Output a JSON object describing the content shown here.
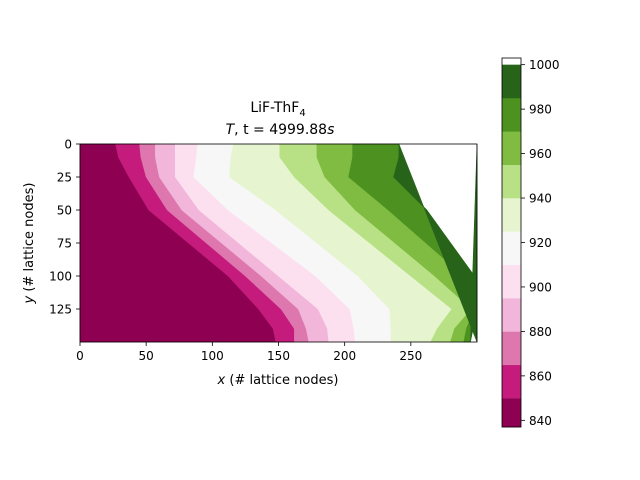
{
  "chart_data": {
    "type": "heatmap",
    "subtype": "filled-contour",
    "title_line1": "LiF-ThF",
    "title_line1_sub": "4",
    "title_line2_var": "T",
    "title_line2_rest": ", t = 4999.88",
    "title_line2_unit": "s",
    "xlabel_var": "x",
    "xlabel_rest": " (# lattice nodes)",
    "ylabel_var": "y",
    "ylabel_rest": " (# lattice nodes)",
    "xlim": [
      0,
      300
    ],
    "ylim": [
      150,
      0
    ],
    "xticks": [
      0,
      50,
      100,
      150,
      200,
      250
    ],
    "yticks": [
      0,
      25,
      50,
      75,
      100,
      125
    ],
    "colorbar": {
      "levels": [
        835,
        850,
        865,
        880,
        895,
        910,
        925,
        940,
        955,
        970,
        985,
        1000
      ],
      "ticks": [
        840,
        860,
        880,
        900,
        920,
        940,
        960,
        980,
        1000
      ],
      "range": [
        837,
        1003
      ],
      "colors": [
        "#8e0152",
        "#c51b7d",
        "#de77ae",
        "#f1b6da",
        "#fde0ef",
        "#f7f7f7",
        "#e6f5d0",
        "#b8e186",
        "#7fbc41",
        "#4d9221",
        "#276419"
      ]
    },
    "contour_boundaries_x": [
      {
        "level": 850,
        "x_at_y": [
          [
            0,
            27
          ],
          [
            10,
            29
          ],
          [
            25,
            37
          ],
          [
            50,
            52
          ],
          [
            100,
            112
          ],
          [
            125,
            135
          ],
          [
            140,
            146
          ],
          [
            150,
            148
          ]
        ]
      },
      {
        "level": 865,
        "x_at_y": [
          [
            0,
            45
          ],
          [
            10,
            46
          ],
          [
            25,
            50
          ],
          [
            50,
            66
          ],
          [
            100,
            125
          ],
          [
            125,
            152
          ],
          [
            140,
            162
          ],
          [
            150,
            162
          ]
        ]
      },
      {
        "level": 880,
        "x_at_y": [
          [
            0,
            57
          ],
          [
            10,
            57
          ],
          [
            25,
            60
          ],
          [
            50,
            77
          ],
          [
            100,
            137
          ],
          [
            125,
            165
          ],
          [
            140,
            171
          ],
          [
            150,
            173
          ]
        ]
      },
      {
        "level": 895,
        "x_at_y": [
          [
            0,
            72
          ],
          [
            10,
            72
          ],
          [
            25,
            72
          ],
          [
            50,
            90
          ],
          [
            100,
            150
          ],
          [
            125,
            180
          ],
          [
            140,
            187
          ],
          [
            150,
            188
          ]
        ]
      },
      {
        "level": 910,
        "x_at_y": [
          [
            0,
            89
          ],
          [
            10,
            88
          ],
          [
            25,
            86
          ],
          [
            50,
            112
          ],
          [
            100,
            178
          ],
          [
            125,
            204
          ],
          [
            140,
            207
          ],
          [
            150,
            208
          ]
        ]
      },
      {
        "level": 925,
        "x_at_y": [
          [
            0,
            116
          ],
          [
            10,
            114
          ],
          [
            25,
            113
          ],
          [
            50,
            148
          ],
          [
            100,
            210
          ],
          [
            125,
            234
          ],
          [
            140,
            235
          ],
          [
            150,
            235
          ]
        ]
      },
      {
        "level": 940,
        "x_at_y": [
          [
            0,
            151
          ],
          [
            10,
            151
          ],
          [
            25,
            162
          ],
          [
            50,
            188
          ],
          [
            100,
            250
          ],
          [
            125,
            281
          ],
          [
            140,
            270
          ],
          [
            150,
            265
          ]
        ]
      },
      {
        "level": 955,
        "x_at_y": [
          [
            0,
            179
          ],
          [
            10,
            179
          ],
          [
            25,
            185
          ],
          [
            50,
            208
          ],
          [
            100,
            268
          ],
          [
            125,
            296
          ],
          [
            140,
            283
          ],
          [
            150,
            280
          ]
        ]
      },
      {
        "level": 970,
        "x_at_y": [
          [
            0,
            206
          ],
          [
            10,
            206
          ],
          [
            25,
            203
          ],
          [
            50,
            233
          ],
          [
            100,
            290
          ],
          [
            125,
            298
          ],
          [
            140,
            292
          ],
          [
            150,
            290
          ]
        ]
      },
      {
        "level": 985,
        "x_at_y": [
          [
            0,
            241
          ],
          [
            10,
            241
          ],
          [
            25,
            237
          ],
          [
            50,
            262
          ],
          [
            100,
            298
          ],
          [
            125,
            299
          ],
          [
            140,
            297
          ],
          [
            150,
            295
          ]
        ]
      }
    ]
  }
}
